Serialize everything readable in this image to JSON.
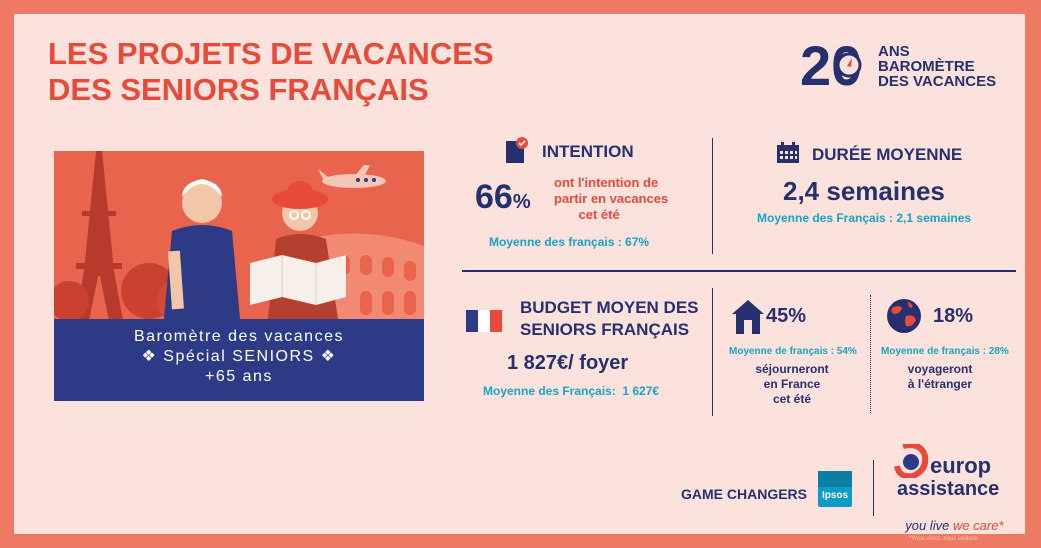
{
  "title": {
    "line1": "LES PROJETS DE VACANCES",
    "line2": "DES SENIORS FRANÇAIS"
  },
  "badge": {
    "number": "20",
    "line1": "ANS",
    "line2": "BAROMÈTRE",
    "line3": "DES VACANCES"
  },
  "illustration": {
    "banner_line1": "Baromètre des vacances",
    "banner_line2": "❖ Spécial SENIORS ❖",
    "banner_line3": "+65 ans"
  },
  "intention": {
    "heading": "INTENTION",
    "value": "66",
    "unit": "%",
    "desc_line1": "ont l'intention de",
    "desc_line2": "partir en vacances",
    "desc_line3": "cet été",
    "average": "Moyenne des français : 67%"
  },
  "duree": {
    "heading": "DURÉE MOYENNE",
    "value": "2,4 semaines",
    "average": "Moyenne des Français : 2,1 semaines"
  },
  "budget": {
    "heading_line1": "BUDGET MOYEN DES",
    "heading_line2": "SENIORS FRANÇAIS",
    "value": "1 827€/ foyer",
    "average": "Moyenne des Français:  1 627€"
  },
  "france": {
    "value": "45%",
    "average": "Moyenne de français : 54%",
    "desc_line1": "séjourneront",
    "desc_line2": "en France",
    "desc_line3": "cet été"
  },
  "abroad": {
    "value": "18%",
    "average": "Moyenne de français : 28%",
    "desc_line1": "voyageront",
    "desc_line2": "à l'étranger"
  },
  "footer": {
    "game_changers": "GAME CHANGERS",
    "ipsos": "Ipsos",
    "europ": "europ",
    "assistance": "assistance",
    "slogan_a": "you live ",
    "slogan_b": "we care",
    "slogan_star": "*",
    "footnote": "*Vous vivez, nous veillons"
  },
  "colors": {
    "frame": "#ef7a63",
    "background": "#fce2dc",
    "navy": "#27306e",
    "red": "#e84a3a",
    "cyan": "#19a3c9"
  }
}
